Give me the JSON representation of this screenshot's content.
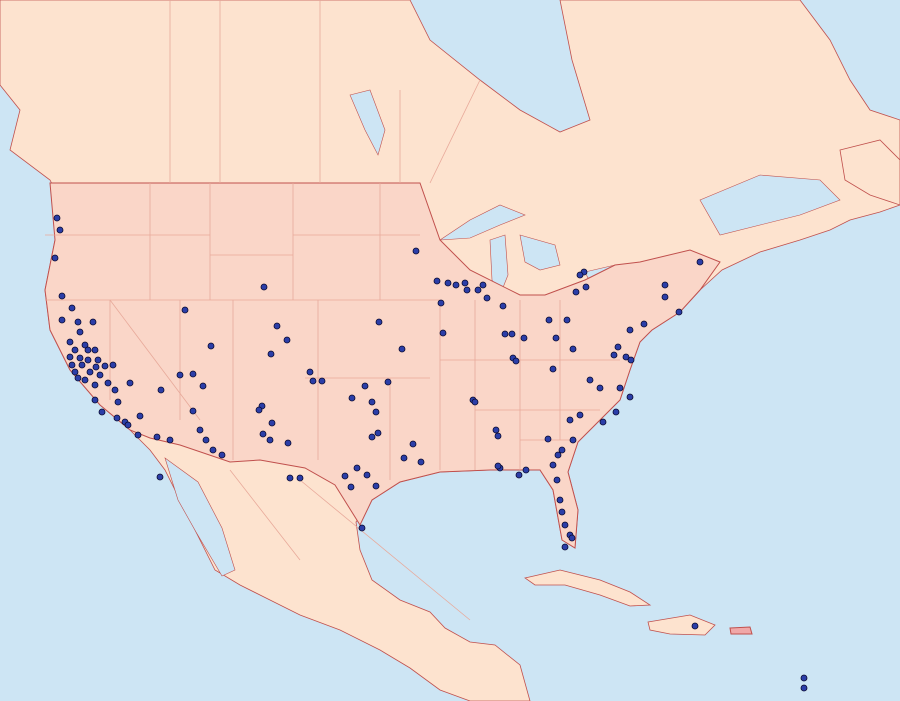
{
  "map": {
    "colors": {
      "ocean": "#cde5f4",
      "land": "#fde3cf",
      "us_land": "#fad6c8",
      "border": "#c0504d",
      "minor_border": "#e8a99a",
      "marker_fill": "#2b3ea8",
      "marker_stroke": "#0a0a30",
      "highlight_island": "#f0a8a8"
    },
    "marker_icon": "circle-dot"
  }
}
